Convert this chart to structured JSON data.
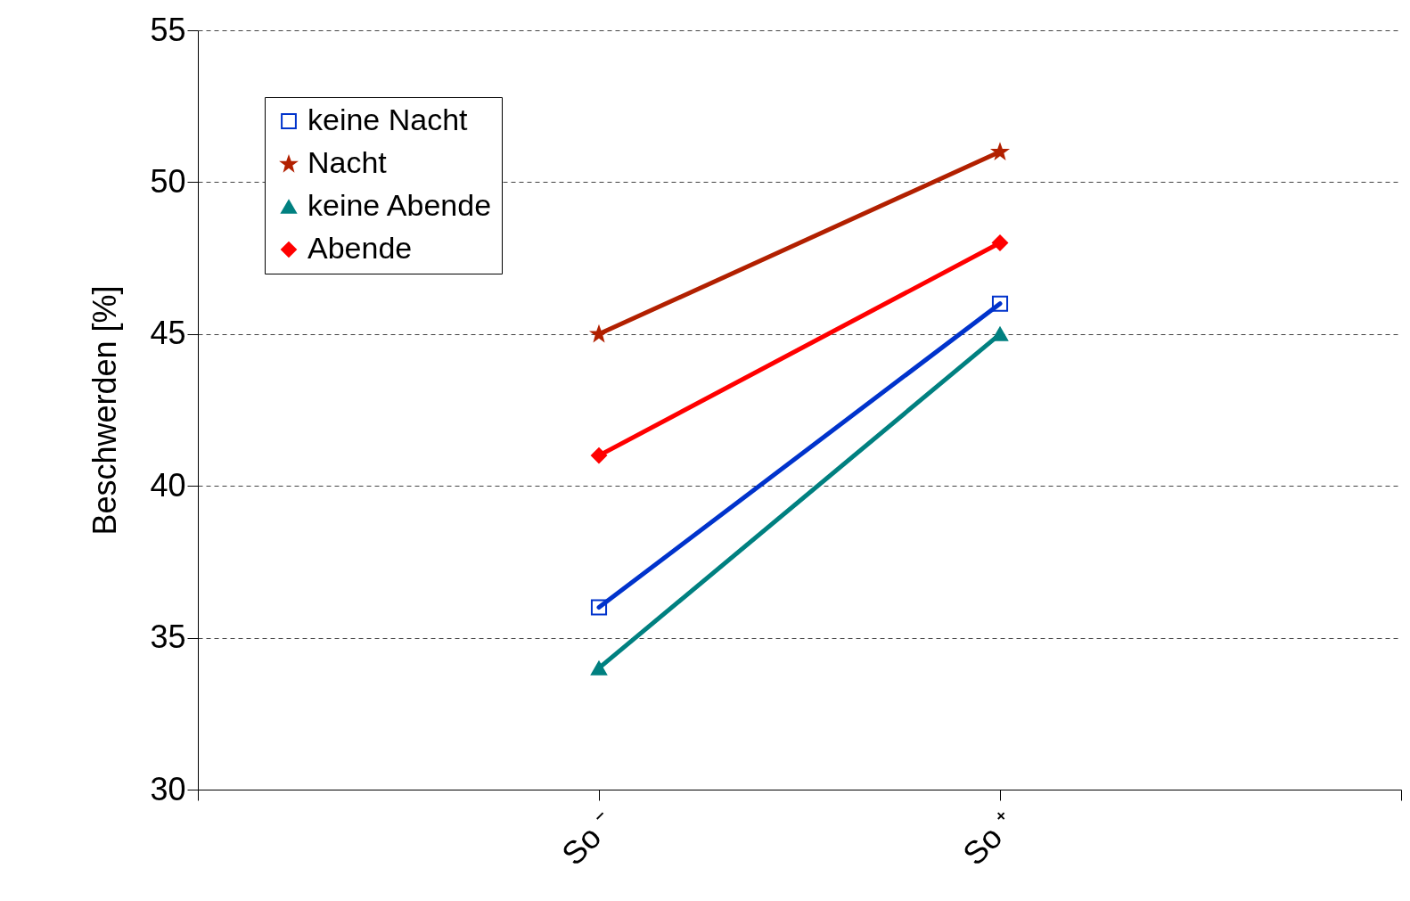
{
  "chart_data": {
    "type": "line",
    "ylabel": "Beschwerden [%]",
    "categories": [
      null,
      "So ⁻",
      "So ⁺",
      null
    ],
    "ylim": [
      30,
      55
    ],
    "yticks": [
      30,
      35,
      40,
      45,
      50,
      55
    ],
    "grid": "y",
    "legend": "top left",
    "series": [
      {
        "name": "keine Nacht",
        "color": "#0033cc",
        "marker": "square",
        "values": [
          null,
          36,
          46,
          null
        ]
      },
      {
        "name": "Nacht",
        "color": "#b22000",
        "marker": "star",
        "values": [
          null,
          45,
          51,
          null
        ]
      },
      {
        "name": "keine Abende",
        "color": "#008080",
        "marker": "triangle",
        "values": [
          null,
          34,
          45,
          null
        ]
      },
      {
        "name": "Abende",
        "color": "#ff0000",
        "marker": "diamond",
        "values": [
          null,
          41,
          48,
          null
        ]
      }
    ]
  }
}
